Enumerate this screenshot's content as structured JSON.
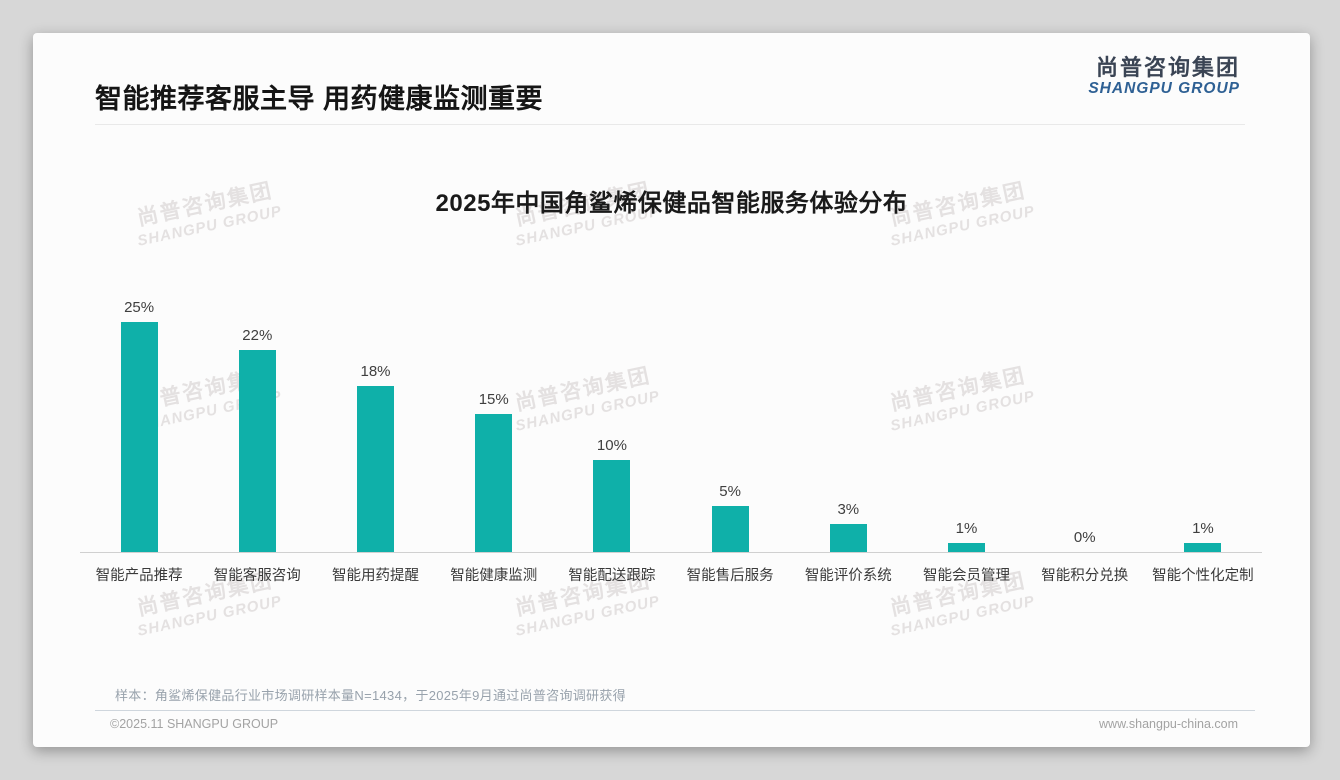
{
  "header": {
    "title": "智能推荐客服主导 用药健康监测重要"
  },
  "logo": {
    "cn": "尚普咨询集团",
    "en": "SHANGPU GROUP"
  },
  "watermark": {
    "cn": "尚普咨询集团",
    "en": "SHANGPU GROUP"
  },
  "chart_data": {
    "type": "bar",
    "title": "2025年中国角鲨烯保健品智能服务体验分布",
    "categories": [
      "智能产品推荐",
      "智能客服咨询",
      "智能用药提醒",
      "智能健康监测",
      "智能配送跟踪",
      "智能售后服务",
      "智能评价系统",
      "智能会员管理",
      "智能积分兑换",
      "智能个性化定制"
    ],
    "values": [
      25,
      22,
      18,
      15,
      10,
      5,
      3,
      1,
      0,
      1
    ],
    "value_labels": [
      "25%",
      "22%",
      "18%",
      "15%",
      "10%",
      "5%",
      "3%",
      "1%",
      "0%",
      "1%"
    ],
    "unit": "%",
    "ylim": [
      0,
      25
    ],
    "bar_color": "#0fb0a9",
    "grid": false,
    "legend": false,
    "xlabel": "",
    "ylabel": ""
  },
  "note": {
    "text": "样本：角鲨烯保健品行业市场调研样本量N=1434，于2025年9月通过尚普咨询调研获得"
  },
  "footer": {
    "left": "©2025.11 SHANGPU GROUP",
    "right": "www.shangpu-china.com"
  },
  "colors": {
    "bar_teal": "#0fb0a9",
    "logo_dark": "#3a4454",
    "logo_blue": "#2e6094"
  }
}
